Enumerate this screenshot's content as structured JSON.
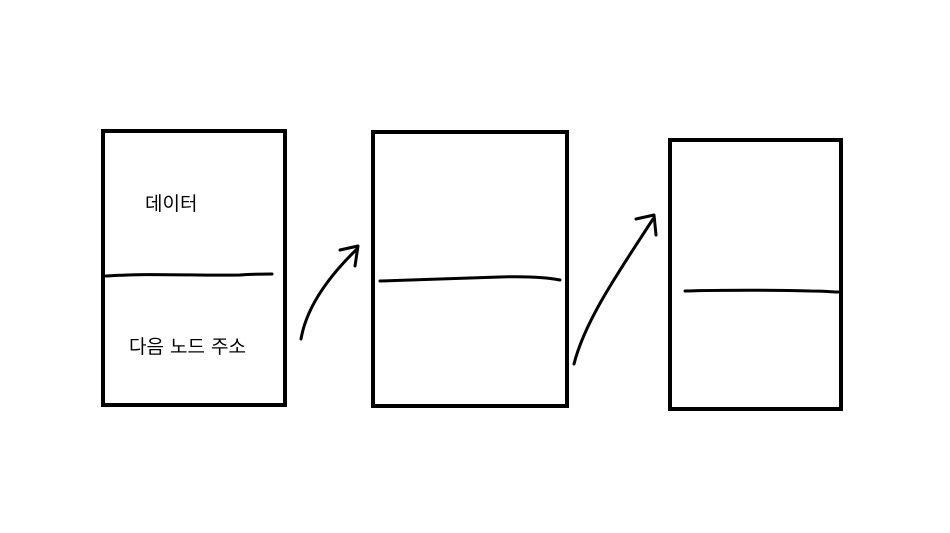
{
  "diagram": {
    "nodes": [
      {
        "id": "node-1",
        "data_label": "데이터",
        "next_label": "다음 노드 주소"
      },
      {
        "id": "node-2",
        "data_label": "",
        "next_label": ""
      },
      {
        "id": "node-3",
        "data_label": "",
        "next_label": ""
      }
    ],
    "edges": [
      {
        "from": "node-1",
        "to": "node-2"
      },
      {
        "from": "node-2",
        "to": "node-3"
      }
    ],
    "colors": {
      "stroke": "#000000",
      "background": "#ffffff"
    }
  }
}
